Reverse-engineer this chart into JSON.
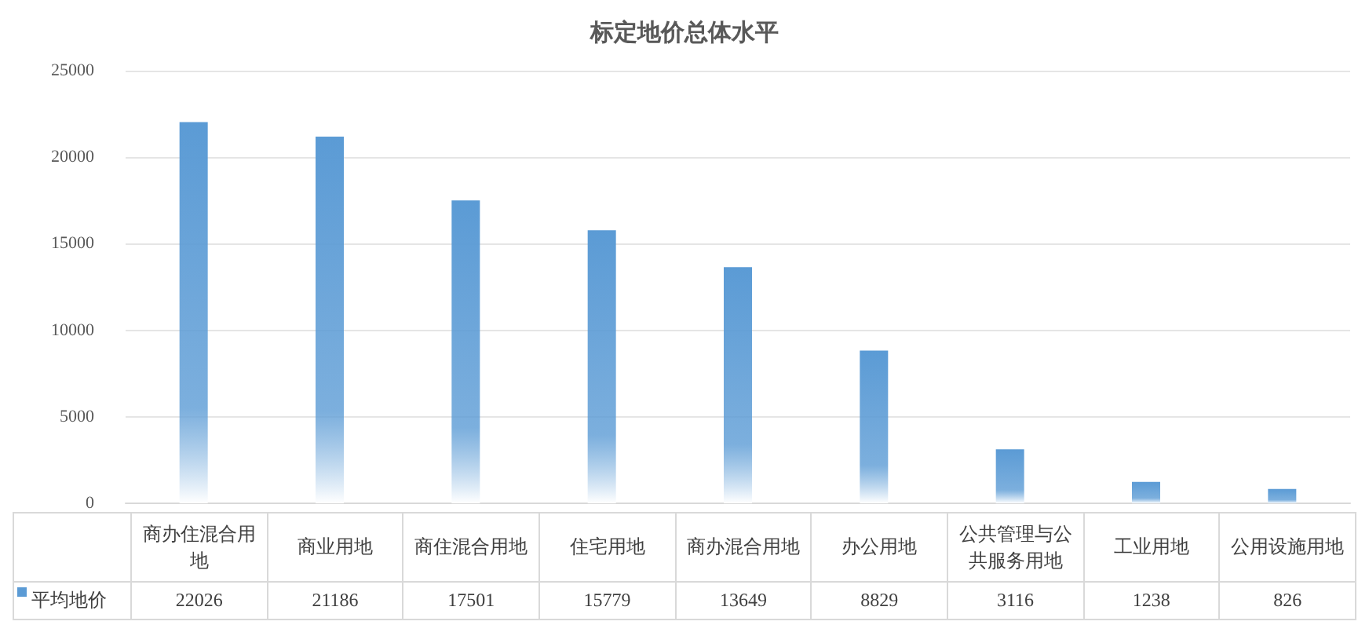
{
  "chart_data": {
    "type": "bar",
    "title": "标定地价总体水平",
    "categories": [
      "商办住混合用地",
      "商业用地",
      "商住混合用地",
      "住宅用地",
      "商办混合用地",
      "办公用地",
      "公共管理与公共服务用地",
      "工业用地",
      "公用设施用地"
    ],
    "series": [
      {
        "name": "平均地价",
        "color": "#5b9bd5",
        "values": [
          22026,
          21186,
          17501,
          15779,
          13649,
          8829,
          3116,
          1238,
          826
        ]
      }
    ],
    "ylim": [
      0,
      25000
    ],
    "yticks": [
      0,
      5000,
      10000,
      15000,
      20000,
      25000
    ],
    "grid": "y",
    "legend": "bottom left",
    "data_labels": true
  }
}
